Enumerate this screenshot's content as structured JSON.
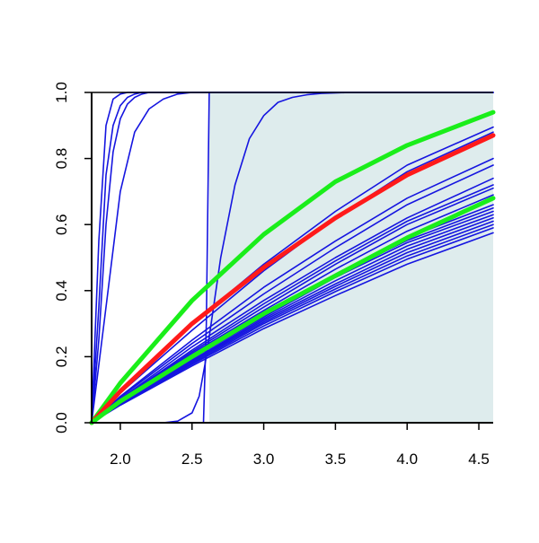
{
  "chart_data": {
    "type": "line",
    "title": "",
    "xlabel": "",
    "ylabel": "",
    "xlim": [
      1.8,
      4.6
    ],
    "ylim": [
      0.0,
      1.0
    ],
    "x_ticks": [
      2.0,
      2.5,
      3.0,
      3.5,
      4.0,
      4.5
    ],
    "x_tick_labels": [
      "2.0",
      "2.5",
      "3.0",
      "3.5",
      "4.0",
      "4.5"
    ],
    "y_ticks": [
      0.0,
      0.2,
      0.4,
      0.6,
      0.8,
      1.0
    ],
    "y_tick_labels": [
      "0.0",
      "0.2",
      "0.4",
      "0.6",
      "0.8",
      "1.0"
    ],
    "grid": false,
    "legend": "none",
    "shaded_region": {
      "x_from": 2.62,
      "x_to": 4.6,
      "color": "#deeced"
    },
    "colors": {
      "blue": "#1515e0",
      "red": "#ff1a1a",
      "green": "#1aee1a",
      "axis": "#000000"
    },
    "series": [
      {
        "color": "blue",
        "width": 1.6,
        "x": [
          1.8,
          1.85,
          1.9,
          1.95,
          2.0,
          2.05,
          2.1,
          2.15,
          2.2,
          2.3,
          2.4,
          4.6
        ],
        "y": [
          0,
          0.55,
          0.9,
          0.98,
          0.995,
          1,
          1,
          1,
          1,
          1,
          1,
          1
        ]
      },
      {
        "color": "blue",
        "width": 1.6,
        "x": [
          1.8,
          1.85,
          1.9,
          1.95,
          2.0,
          2.05,
          2.1,
          2.15,
          2.2,
          2.3,
          2.4,
          4.6
        ],
        "y": [
          0,
          0.35,
          0.75,
          0.9,
          0.96,
          0.985,
          0.995,
          1,
          1,
          1,
          1,
          1
        ]
      },
      {
        "color": "blue",
        "width": 1.6,
        "x": [
          1.8,
          1.85,
          1.9,
          1.95,
          2.0,
          2.05,
          2.1,
          2.15,
          2.2,
          2.3,
          2.4,
          4.6
        ],
        "y": [
          0,
          0.25,
          0.6,
          0.82,
          0.92,
          0.965,
          0.985,
          0.995,
          1,
          1,
          1,
          1
        ]
      },
      {
        "color": "blue",
        "width": 1.6,
        "x": [
          1.8,
          1.9,
          2.0,
          2.1,
          2.2,
          2.3,
          2.4,
          2.5,
          2.6,
          4.6
        ],
        "y": [
          0,
          0.35,
          0.7,
          0.88,
          0.95,
          0.98,
          0.995,
          1,
          1,
          1
        ]
      },
      {
        "color": "blue",
        "width": 1.6,
        "x": [
          1.8,
          2.0,
          2.2,
          2.3,
          2.4,
          2.5,
          2.55,
          2.58,
          2.6,
          2.62,
          4.6
        ],
        "y": [
          0,
          0,
          0,
          0,
          0,
          0,
          0,
          0,
          0.3,
          1,
          1
        ]
      },
      {
        "color": "blue",
        "width": 1.6,
        "x": [
          1.8,
          2.1,
          2.3,
          2.4,
          2.5,
          2.55,
          2.6,
          2.7,
          2.8,
          2.9,
          3.0,
          3.1,
          3.2,
          3.3,
          3.4,
          3.6,
          4.6
        ],
        "y": [
          0,
          0,
          0,
          0.005,
          0.03,
          0.08,
          0.2,
          0.5,
          0.72,
          0.86,
          0.93,
          0.97,
          0.985,
          0.993,
          0.997,
          1,
          1
        ]
      },
      {
        "color": "blue",
        "width": 1.6,
        "x": [
          1.8,
          2.0,
          2.5,
          3.0,
          3.5,
          4.0,
          4.6
        ],
        "y": [
          0,
          0.1,
          0.3,
          0.48,
          0.64,
          0.78,
          0.895
        ]
      },
      {
        "color": "blue",
        "width": 1.6,
        "x": [
          1.8,
          2.0,
          2.5,
          3.0,
          3.5,
          4.0,
          4.6
        ],
        "y": [
          0,
          0.09,
          0.28,
          0.46,
          0.62,
          0.76,
          0.88
        ]
      },
      {
        "color": "blue",
        "width": 1.6,
        "x": [
          1.8,
          2.0,
          2.5,
          3.0,
          3.5,
          4.0,
          4.6
        ],
        "y": [
          0,
          0.08,
          0.25,
          0.41,
          0.55,
          0.68,
          0.8
        ]
      },
      {
        "color": "blue",
        "width": 1.6,
        "x": [
          1.8,
          2.0,
          2.5,
          3.0,
          3.5,
          4.0,
          4.6
        ],
        "y": [
          0,
          0.077,
          0.24,
          0.39,
          0.53,
          0.66,
          0.78
        ]
      },
      {
        "color": "blue",
        "width": 1.6,
        "x": [
          1.8,
          2.0,
          2.5,
          3.0,
          3.5,
          4.0,
          4.6
        ],
        "y": [
          0,
          0.072,
          0.23,
          0.37,
          0.5,
          0.62,
          0.74
        ]
      },
      {
        "color": "blue",
        "width": 1.6,
        "x": [
          1.8,
          2.0,
          2.5,
          3.0,
          3.5,
          4.0,
          4.6
        ],
        "y": [
          0,
          0.07,
          0.22,
          0.36,
          0.49,
          0.61,
          0.72
        ]
      },
      {
        "color": "blue",
        "width": 1.6,
        "x": [
          1.8,
          2.0,
          2.5,
          3.0,
          3.5,
          4.0,
          4.6
        ],
        "y": [
          0,
          0.068,
          0.215,
          0.35,
          0.48,
          0.6,
          0.71
        ]
      },
      {
        "color": "blue",
        "width": 1.6,
        "x": [
          1.8,
          2.0,
          2.5,
          3.0,
          3.5,
          4.0,
          4.6
        ],
        "y": [
          0,
          0.065,
          0.21,
          0.34,
          0.465,
          0.58,
          0.69
        ]
      },
      {
        "color": "blue",
        "width": 1.6,
        "x": [
          1.8,
          2.0,
          2.5,
          3.0,
          3.5,
          4.0,
          4.6
        ],
        "y": [
          0,
          0.063,
          0.2,
          0.33,
          0.45,
          0.56,
          0.66
        ]
      },
      {
        "color": "blue",
        "width": 1.6,
        "x": [
          1.8,
          2.0,
          2.5,
          3.0,
          3.5,
          4.0,
          4.6
        ],
        "y": [
          0,
          0.062,
          0.198,
          0.325,
          0.445,
          0.552,
          0.65
        ]
      },
      {
        "color": "blue",
        "width": 1.6,
        "x": [
          1.8,
          2.0,
          2.5,
          3.0,
          3.5,
          4.0,
          4.6
        ],
        "y": [
          0,
          0.06,
          0.195,
          0.32,
          0.44,
          0.545,
          0.64
        ]
      },
      {
        "color": "blue",
        "width": 1.6,
        "x": [
          1.8,
          2.0,
          2.5,
          3.0,
          3.5,
          4.0,
          4.6
        ],
        "y": [
          0,
          0.059,
          0.19,
          0.315,
          0.43,
          0.535,
          0.63
        ]
      },
      {
        "color": "blue",
        "width": 1.6,
        "x": [
          1.8,
          2.0,
          2.5,
          3.0,
          3.5,
          4.0,
          4.6
        ],
        "y": [
          0,
          0.058,
          0.187,
          0.31,
          0.42,
          0.525,
          0.62
        ]
      },
      {
        "color": "blue",
        "width": 1.6,
        "x": [
          1.8,
          2.0,
          2.5,
          3.0,
          3.5,
          4.0,
          4.6
        ],
        "y": [
          0,
          0.057,
          0.184,
          0.305,
          0.413,
          0.515,
          0.61
        ]
      },
      {
        "color": "blue",
        "width": 1.6,
        "x": [
          1.8,
          2.0,
          2.5,
          3.0,
          3.5,
          4.0,
          4.6
        ],
        "y": [
          0,
          0.056,
          0.18,
          0.3,
          0.405,
          0.505,
          0.6
        ]
      },
      {
        "color": "blue",
        "width": 1.6,
        "x": [
          1.8,
          2.0,
          2.5,
          3.0,
          3.5,
          4.0,
          4.6
        ],
        "y": [
          0,
          0.055,
          0.177,
          0.293,
          0.397,
          0.495,
          0.59
        ]
      },
      {
        "color": "blue",
        "width": 1.6,
        "x": [
          1.8,
          2.0,
          2.5,
          3.0,
          3.5,
          4.0,
          4.6
        ],
        "y": [
          0,
          0.053,
          0.172,
          0.285,
          0.385,
          0.48,
          0.575
        ]
      },
      {
        "color": "green",
        "width": 5,
        "x": [
          1.8,
          2.0,
          2.5,
          3.0,
          3.5,
          4.0,
          4.6
        ],
        "y": [
          0,
          0.12,
          0.37,
          0.57,
          0.73,
          0.84,
          0.94
        ]
      },
      {
        "color": "red",
        "width": 5,
        "x": [
          1.8,
          2.0,
          2.5,
          3.0,
          3.5,
          4.0,
          4.6
        ],
        "y": [
          0,
          0.095,
          0.3,
          0.47,
          0.62,
          0.75,
          0.87
        ]
      },
      {
        "color": "green",
        "width": 5,
        "x": [
          1.8,
          2.0,
          2.5,
          3.0,
          3.5,
          4.0,
          4.6
        ],
        "y": [
          0,
          0.065,
          0.2,
          0.33,
          0.445,
          0.56,
          0.68
        ]
      }
    ]
  }
}
